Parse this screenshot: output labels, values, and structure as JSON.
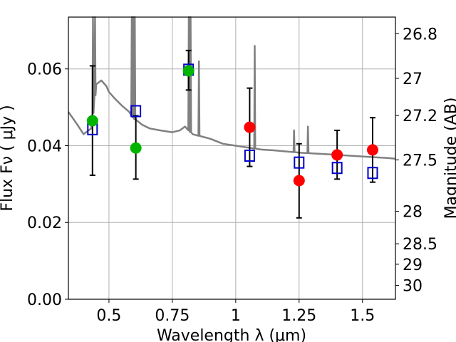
{
  "chart_data": {
    "type": "scatter",
    "xlabel": "Wavelength  λ (μm)",
    "ylabel": "Flux  Fν  ( μJy )",
    "y2label": "Magnitude (AB)",
    "xlim": [
      0.34,
      1.63
    ],
    "ylim": [
      0.0,
      0.0735
    ],
    "x_ticks": [
      0.5,
      0.75,
      1,
      1.25,
      1.5
    ],
    "x_tick_labels": [
      "0.5",
      "0.75",
      "1",
      "1.25",
      "1.5"
    ],
    "y_ticks": [
      0.0,
      0.02,
      0.04,
      0.06
    ],
    "y_tick_labels": [
      "0.00",
      "0.02",
      "0.04",
      "0.06"
    ],
    "y2_ticks": [
      26.8,
      27,
      27.2,
      27.5,
      28,
      28.5,
      29,
      30
    ],
    "y2_tick_labels": [
      "26.8",
      "27",
      "27.2",
      "27.5",
      "28",
      "28.5",
      "29",
      "30"
    ],
    "grid": true,
    "colors": {
      "model": "#808080",
      "green": "#00b400",
      "red": "#ff0000",
      "blue": "#0000cc",
      "errorbar": "#000000"
    },
    "series": [
      {
        "marker": "circle",
        "color": "#00b400",
        "points": [
          {
            "x": 0.435,
            "y": 0.0465,
            "yerr_low": 0.0323,
            "yerr_high": 0.0608
          },
          {
            "x": 0.606,
            "y": 0.0394,
            "yerr_low": 0.0313,
            "yerr_high": 0.0478
          },
          {
            "x": 0.814,
            "y": 0.0595,
            "yerr_low": 0.0545,
            "yerr_high": 0.0648
          }
        ]
      },
      {
        "marker": "circle",
        "color": "#ff0000",
        "points": [
          {
            "x": 1.055,
            "y": 0.0448,
            "yerr_low": 0.0346,
            "yerr_high": 0.055
          },
          {
            "x": 1.25,
            "y": 0.0309,
            "yerr_low": 0.0212,
            "yerr_high": 0.0405
          },
          {
            "x": 1.4,
            "y": 0.0376,
            "yerr_low": 0.0313,
            "yerr_high": 0.044
          },
          {
            "x": 1.54,
            "y": 0.0389,
            "yerr_low": 0.0305,
            "yerr_high": 0.0473
          }
        ]
      },
      {
        "marker": "open-square",
        "color": "#0000cc",
        "points": [
          {
            "x": 0.435,
            "y": 0.0443
          },
          {
            "x": 0.606,
            "y": 0.049
          },
          {
            "x": 0.814,
            "y": 0.0598
          },
          {
            "x": 1.055,
            "y": 0.0374
          },
          {
            "x": 1.25,
            "y": 0.0356
          },
          {
            "x": 1.4,
            "y": 0.0342
          },
          {
            "x": 1.54,
            "y": 0.0329
          }
        ]
      }
    ],
    "model_spectrum": {
      "x": [
        0.34,
        0.37,
        0.4,
        0.43,
        0.45,
        0.47,
        0.49,
        0.5,
        0.52,
        0.55,
        0.58,
        0.6,
        0.63,
        0.66,
        0.7,
        0.75,
        0.78,
        0.8,
        0.83,
        0.86,
        0.9,
        0.95,
        1.0,
        1.05,
        1.1,
        1.15,
        1.2,
        1.25,
        1.3,
        1.35,
        1.4,
        1.45,
        1.5,
        1.55,
        1.6,
        1.63
      ],
      "y": [
        0.0488,
        0.046,
        0.043,
        0.0445,
        0.056,
        0.057,
        0.0555,
        0.054,
        0.0525,
        0.0505,
        0.0488,
        0.047,
        0.0455,
        0.0445,
        0.044,
        0.0435,
        0.044,
        0.045,
        0.043,
        0.0425,
        0.0418,
        0.0405,
        0.04,
        0.0395,
        0.039,
        0.0388,
        0.0385,
        0.0382,
        0.038,
        0.0378,
        0.0376,
        0.0374,
        0.0372,
        0.037,
        0.0368,
        0.0366
      ],
      "emission_lines": [
        {
          "x": 0.437,
          "peak": 0.0735
        },
        {
          "x": 0.445,
          "peak": 0.0735
        },
        {
          "x": 0.59,
          "peak": 0.0735
        },
        {
          "x": 0.596,
          "peak": 0.0735
        },
        {
          "x": 0.602,
          "peak": 0.0735
        },
        {
          "x": 0.815,
          "peak": 0.0735
        },
        {
          "x": 0.822,
          "peak": 0.0735
        },
        {
          "x": 0.855,
          "peak": 0.062
        },
        {
          "x": 1.075,
          "peak": 0.066
        },
        {
          "x": 1.23,
          "peak": 0.044
        },
        {
          "x": 1.285,
          "peak": 0.045
        }
      ]
    }
  }
}
